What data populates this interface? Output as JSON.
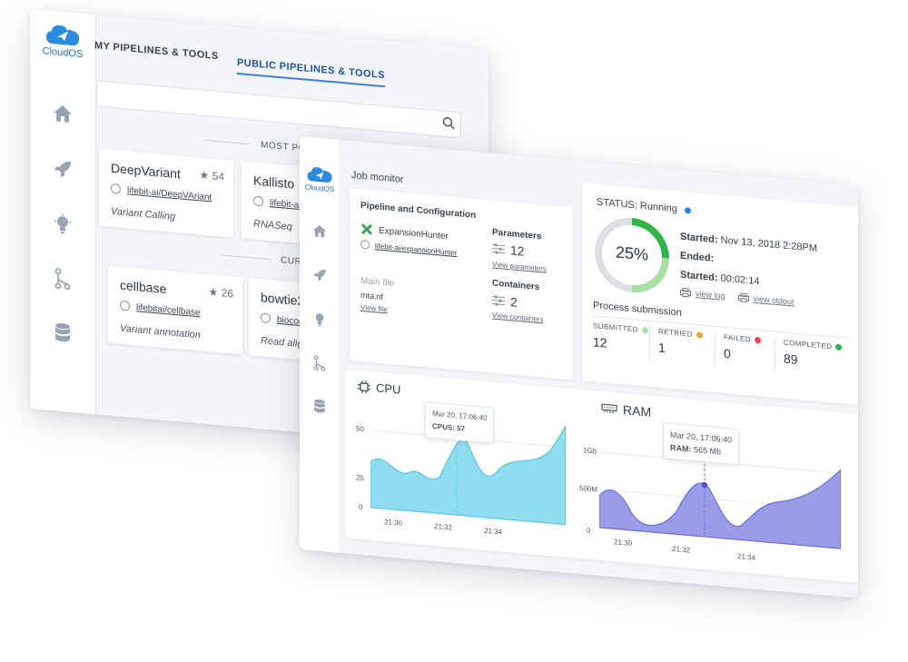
{
  "back": {
    "logo_text": "CloudOS",
    "tabs": [
      {
        "label": "MY PIPELINES & TOOLS"
      },
      {
        "label": "PUBLIC PIPELINES & TOOLS"
      }
    ],
    "search": {
      "placeholder": ""
    },
    "sections": {
      "popular": "MOST POPULAR",
      "curated": "CURAT"
    },
    "cards": [
      {
        "title": "DeepVariant",
        "stars": "54",
        "repo": "lifebit-ai/DeepVAriant",
        "desc": "Variant Calling"
      },
      {
        "title": "Kallisto",
        "stars": "",
        "repo": "lifebit-ai/kalli",
        "desc": "RNASeq"
      },
      {
        "title": "cellbase",
        "stars": "26",
        "repo": "lifebitai/cellbase",
        "desc": "Variant annotation"
      },
      {
        "title": "bowtie2",
        "stars": "",
        "repo": "biocontai",
        "desc": "Read alignm"
      }
    ]
  },
  "front": {
    "logo_text": "CloudOS",
    "title": "Job monitor",
    "pipeline": {
      "heading": "Pipeline and Configuration",
      "name": "ExpansionHunter",
      "repo": "lifebit-ai/expansionHunter",
      "parameters_label": "Parameters",
      "parameters_count": "12",
      "parameters_link": "View parameters",
      "main_file_label": "Main file",
      "main_file": "mta.nf",
      "main_file_link": "View file",
      "containers_label": "Containers",
      "containers_count": "2",
      "containers_link": "View containers"
    },
    "status": {
      "label": "STATUS: Running",
      "progress_text": "25%",
      "progress": 0.25,
      "started_label": "Started:",
      "started": "Nov 13, 2018 2:28PM",
      "ended_label": "Ended:",
      "duration_label": "Started:",
      "duration": "00:02:14",
      "view_log": "view log",
      "view_stdout": "view stdout",
      "submission_title": "Process submission",
      "stats": [
        {
          "label": "SUBMITTED",
          "value": "12",
          "color": "#a8dfa5"
        },
        {
          "label": "RETRIED",
          "value": "1",
          "color": "#f0a334"
        },
        {
          "label": "FAILED",
          "value": "0",
          "color": "#e9474d"
        },
        {
          "label": "COMPLETED",
          "value": "89",
          "color": "#2fb34a"
        }
      ]
    },
    "cpu": {
      "title": "CPU",
      "tooltip_time": "Mar 20, 17:06:40",
      "tooltip_value": "CPUS: 57",
      "y_ticks": [
        "50",
        "25",
        "0"
      ],
      "x_ticks": [
        "21:30",
        "21:32",
        "21:34"
      ]
    },
    "ram": {
      "title": "RAM",
      "tooltip_time": "Mar 20, 17:06:40",
      "tooltip_label": "RAM:",
      "tooltip_value": "565 Mb",
      "y_ticks": [
        "1Gb",
        "500M",
        "0"
      ],
      "x_ticks": [
        "21:30",
        "21:32",
        "21:34"
      ]
    }
  }
}
